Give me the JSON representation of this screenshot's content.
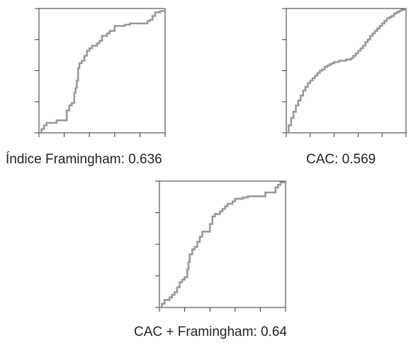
{
  "colors": {
    "curve": "#999999",
    "axis": "#333333"
  },
  "chart_data": [
    {
      "type": "line",
      "title": "Índice Framingham: 0.636",
      "xlabel": "",
      "ylabel": "",
      "xlim": [
        0,
        1
      ],
      "ylim": [
        0,
        1
      ],
      "x_ticks": 6,
      "y_ticks": 5,
      "grid": false,
      "step": true,
      "series": [
        {
          "points": [
            [
              0.0,
              0.0
            ],
            [
              0.02,
              0.03
            ],
            [
              0.04,
              0.06
            ],
            [
              0.06,
              0.08
            ],
            [
              0.12,
              0.08
            ],
            [
              0.14,
              0.1
            ],
            [
              0.2,
              0.1
            ],
            [
              0.22,
              0.18
            ],
            [
              0.24,
              0.22
            ],
            [
              0.26,
              0.24
            ],
            [
              0.28,
              0.32
            ],
            [
              0.29,
              0.36
            ],
            [
              0.3,
              0.42
            ],
            [
              0.31,
              0.52
            ],
            [
              0.32,
              0.56
            ],
            [
              0.34,
              0.58
            ],
            [
              0.36,
              0.62
            ],
            [
              0.38,
              0.66
            ],
            [
              0.4,
              0.68
            ],
            [
              0.42,
              0.7
            ],
            [
              0.46,
              0.72
            ],
            [
              0.48,
              0.74
            ],
            [
              0.5,
              0.78
            ],
            [
              0.54,
              0.8
            ],
            [
              0.56,
              0.82
            ],
            [
              0.6,
              0.86
            ],
            [
              0.66,
              0.86
            ],
            [
              0.68,
              0.87
            ],
            [
              0.72,
              0.88
            ],
            [
              0.84,
              0.88
            ],
            [
              0.86,
              0.9
            ],
            [
              0.88,
              0.91
            ],
            [
              0.9,
              0.94
            ],
            [
              0.92,
              0.97
            ],
            [
              0.96,
              0.98
            ],
            [
              1.0,
              1.0
            ]
          ]
        }
      ]
    },
    {
      "type": "line",
      "title": "CAC: 0.569",
      "xlabel": "",
      "ylabel": "",
      "xlim": [
        0,
        1
      ],
      "ylim": [
        0,
        1
      ],
      "x_ticks": 6,
      "y_ticks": 5,
      "grid": false,
      "step": true,
      "series": [
        {
          "points": [
            [
              0.0,
              0.0
            ],
            [
              0.02,
              0.06
            ],
            [
              0.04,
              0.12
            ],
            [
              0.06,
              0.17
            ],
            [
              0.08,
              0.22
            ],
            [
              0.1,
              0.26
            ],
            [
              0.12,
              0.3
            ],
            [
              0.14,
              0.34
            ],
            [
              0.16,
              0.37
            ],
            [
              0.18,
              0.4
            ],
            [
              0.2,
              0.42
            ],
            [
              0.22,
              0.44
            ],
            [
              0.24,
              0.46
            ],
            [
              0.26,
              0.48
            ],
            [
              0.28,
              0.5
            ],
            [
              0.3,
              0.51
            ],
            [
              0.32,
              0.53
            ],
            [
              0.34,
              0.54
            ],
            [
              0.36,
              0.55
            ],
            [
              0.38,
              0.56
            ],
            [
              0.4,
              0.57
            ],
            [
              0.44,
              0.58
            ],
            [
              0.48,
              0.58
            ],
            [
              0.5,
              0.59
            ],
            [
              0.54,
              0.6
            ],
            [
              0.56,
              0.62
            ],
            [
              0.58,
              0.64
            ],
            [
              0.6,
              0.66
            ],
            [
              0.62,
              0.68
            ],
            [
              0.64,
              0.7
            ],
            [
              0.66,
              0.73
            ],
            [
              0.68,
              0.75
            ],
            [
              0.7,
              0.78
            ],
            [
              0.72,
              0.8
            ],
            [
              0.74,
              0.82
            ],
            [
              0.76,
              0.84
            ],
            [
              0.78,
              0.86
            ],
            [
              0.8,
              0.88
            ],
            [
              0.82,
              0.9
            ],
            [
              0.84,
              0.92
            ],
            [
              0.86,
              0.93
            ],
            [
              0.88,
              0.94
            ],
            [
              0.9,
              0.96
            ],
            [
              0.92,
              0.97
            ],
            [
              0.94,
              0.98
            ],
            [
              0.96,
              0.99
            ],
            [
              1.0,
              1.0
            ]
          ]
        }
      ]
    },
    {
      "type": "line",
      "title": "CAC + Framingham: 0.64",
      "xlabel": "",
      "ylabel": "",
      "xlim": [
        0,
        1
      ],
      "ylim": [
        0,
        1
      ],
      "x_ticks": 6,
      "y_ticks": 5,
      "grid": false,
      "step": true,
      "series": [
        {
          "points": [
            [
              0.0,
              0.0
            ],
            [
              0.02,
              0.03
            ],
            [
              0.04,
              0.06
            ],
            [
              0.08,
              0.08
            ],
            [
              0.1,
              0.1
            ],
            [
              0.12,
              0.12
            ],
            [
              0.14,
              0.16
            ],
            [
              0.16,
              0.2
            ],
            [
              0.18,
              0.22
            ],
            [
              0.2,
              0.24
            ],
            [
              0.22,
              0.3
            ],
            [
              0.23,
              0.36
            ],
            [
              0.24,
              0.42
            ],
            [
              0.26,
              0.46
            ],
            [
              0.28,
              0.48
            ],
            [
              0.3,
              0.52
            ],
            [
              0.32,
              0.56
            ],
            [
              0.34,
              0.6
            ],
            [
              0.38,
              0.6
            ],
            [
              0.4,
              0.66
            ],
            [
              0.42,
              0.72
            ],
            [
              0.44,
              0.74
            ],
            [
              0.48,
              0.76
            ],
            [
              0.5,
              0.78
            ],
            [
              0.52,
              0.8
            ],
            [
              0.54,
              0.82
            ],
            [
              0.58,
              0.84
            ],
            [
              0.6,
              0.86
            ],
            [
              0.64,
              0.86
            ],
            [
              0.66,
              0.87
            ],
            [
              0.7,
              0.88
            ],
            [
              0.82,
              0.88
            ],
            [
              0.84,
              0.91
            ],
            [
              0.9,
              0.91
            ],
            [
              0.92,
              0.95
            ],
            [
              0.94,
              0.97
            ],
            [
              0.96,
              0.99
            ],
            [
              1.0,
              1.0
            ]
          ]
        }
      ]
    }
  ]
}
